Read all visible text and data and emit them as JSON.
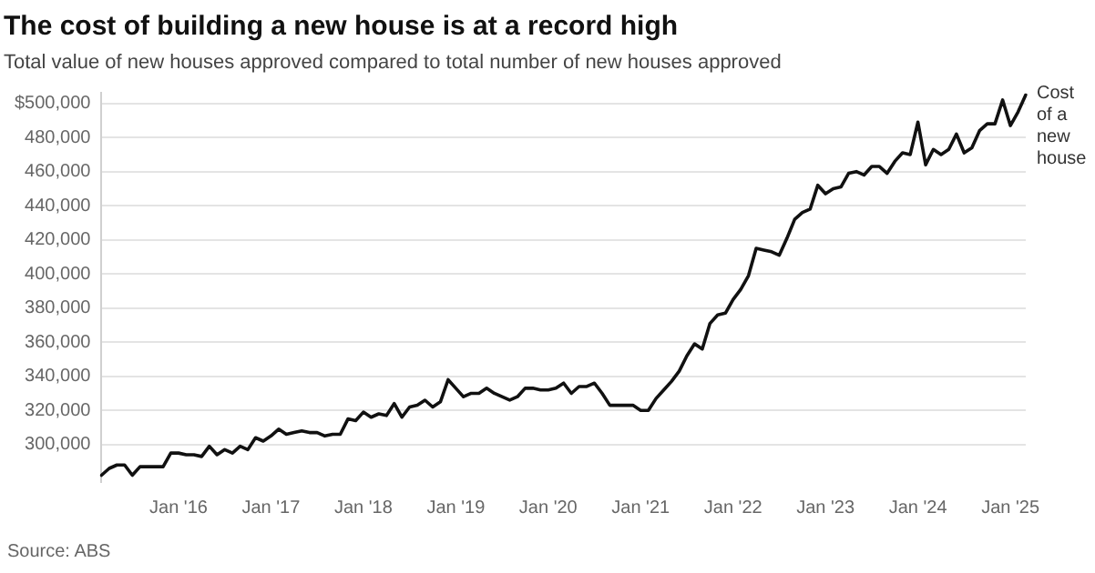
{
  "chart_data": {
    "type": "line",
    "title": "The cost of building a new house is at a record high",
    "subtitle": "Total value of new houses approved compared to total number of new houses approved",
    "categories": [
      null,
      null,
      null,
      null,
      null,
      null,
      null,
      null,
      null,
      null,
      "Jan '16",
      null,
      null,
      null,
      null,
      null,
      null,
      null,
      null,
      null,
      null,
      null,
      "Jan '17",
      null,
      null,
      null,
      null,
      null,
      null,
      null,
      null,
      null,
      null,
      null,
      "Jan '18",
      null,
      null,
      null,
      null,
      null,
      null,
      null,
      null,
      null,
      null,
      null,
      "Jan '19",
      null,
      null,
      null,
      null,
      null,
      null,
      null,
      null,
      null,
      null,
      null,
      "Jan '20",
      null,
      null,
      null,
      null,
      null,
      null,
      null,
      null,
      null,
      null,
      null,
      "Jan '21",
      null,
      null,
      null,
      null,
      null,
      null,
      null,
      null,
      null,
      null,
      null,
      "Jan '22",
      null,
      null,
      null,
      null,
      null,
      null,
      null,
      null,
      null,
      null,
      null,
      "Jan '23",
      null,
      null,
      null,
      null,
      null,
      null,
      null,
      null,
      null,
      null,
      null,
      "Jan '24",
      null,
      null,
      null,
      null,
      null,
      null,
      null,
      null,
      null,
      null,
      null,
      "Jan '25",
      null,
      null
    ],
    "series": [
      {
        "name": "Cost of a new house",
        "color": "#111111",
        "values": [
          282000,
          286000,
          288000,
          288000,
          282000,
          287000,
          287000,
          287000,
          287000,
          295000,
          295000,
          294000,
          294000,
          293000,
          299000,
          294000,
          297000,
          295000,
          299000,
          297000,
          304000,
          302000,
          305000,
          309000,
          306000,
          307000,
          308000,
          307000,
          307000,
          305000,
          306000,
          306000,
          315000,
          314000,
          319000,
          316000,
          318000,
          317000,
          324000,
          316000,
          322000,
          323000,
          326000,
          322000,
          325000,
          338000,
          333000,
          328000,
          330000,
          330000,
          333000,
          330000,
          328000,
          326000,
          328000,
          333000,
          333000,
          332000,
          332000,
          333000,
          336000,
          330000,
          334000,
          334000,
          336000,
          330000,
          323000,
          323000,
          323000,
          323000,
          320000,
          320000,
          327000,
          332000,
          337000,
          343000,
          352000,
          359000,
          356000,
          371000,
          376000,
          377000,
          385000,
          391000,
          399000,
          415000,
          414000,
          413000,
          411000,
          421000,
          432000,
          436000,
          438000,
          452000,
          447000,
          450000,
          451000,
          459000,
          460000,
          458000,
          463000,
          463000,
          459000,
          466000,
          471000,
          470000,
          489000,
          464000,
          473000,
          470000,
          473000,
          482000,
          471000,
          474000,
          484000,
          488000,
          488000,
          502000,
          487000,
          495000,
          505000
        ]
      }
    ],
    "ylim": [
      278000,
      506000
    ],
    "yticks": [
      {
        "value": 300000,
        "label": "300,000"
      },
      {
        "value": 320000,
        "label": "320,000"
      },
      {
        "value": 340000,
        "label": "340,000"
      },
      {
        "value": 360000,
        "label": "360,000"
      },
      {
        "value": 380000,
        "label": "380,000"
      },
      {
        "value": 400000,
        "label": "400,000"
      },
      {
        "value": 420000,
        "label": "420,000"
      },
      {
        "value": 440000,
        "label": "440,000"
      },
      {
        "value": 460000,
        "label": "460,000"
      },
      {
        "value": 480000,
        "label": "480,000"
      },
      {
        "value": 500000,
        "label": "$500,000"
      }
    ],
    "grid": "y",
    "legend": false,
    "marker": "none",
    "line_style": "solid",
    "annotations": [
      "Source: ABS"
    ]
  }
}
